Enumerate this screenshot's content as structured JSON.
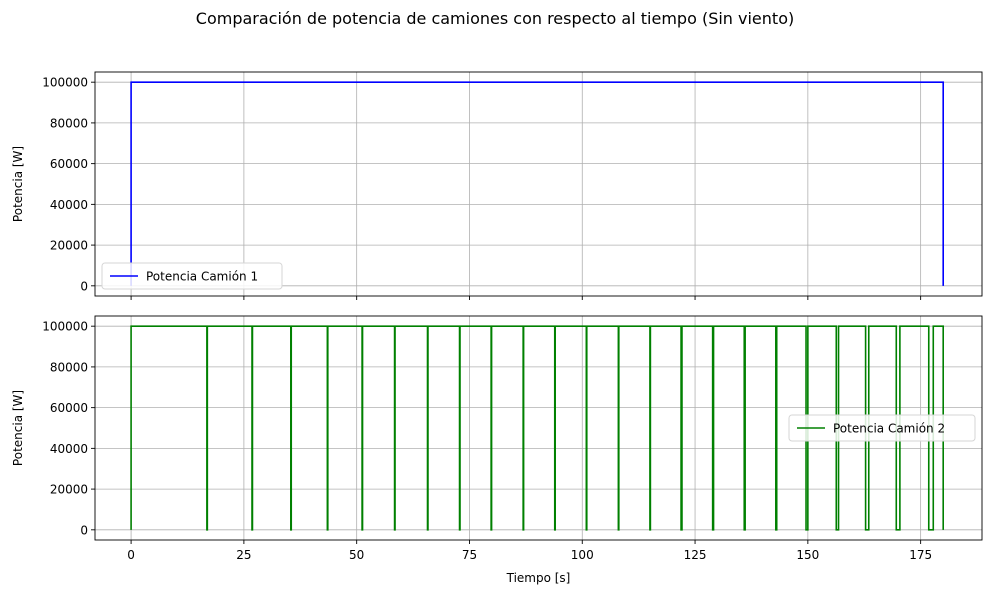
{
  "figure": {
    "suptitle": "Comparación de potencia de camiones con respecto al tiempo (Sin viento)"
  },
  "chart_data": [
    {
      "type": "line",
      "title": "",
      "xlabel": "",
      "ylabel": "Potencia [W]",
      "xlim": [
        -8.0,
        188.6
      ],
      "ylim": [
        -5000,
        105000
      ],
      "xticks": [
        0,
        25,
        50,
        75,
        100,
        125,
        150,
        175
      ],
      "xtick_labels_visible": false,
      "yticks": [
        0,
        20000,
        40000,
        60000,
        80000,
        100000
      ],
      "grid": true,
      "legend": {
        "position": "lower-left"
      },
      "series": [
        {
          "name": "Potencia Camión 1",
          "color": "#0000ff",
          "x": [
            0,
            0.001,
            180,
            180
          ],
          "y": [
            0,
            100000,
            100000,
            0
          ]
        }
      ]
    },
    {
      "type": "line",
      "title": "",
      "xlabel": "Tiempo [s]",
      "ylabel": "Potencia [W]",
      "xlim": [
        -8.0,
        188.6
      ],
      "ylim": [
        -5000,
        105000
      ],
      "xticks": [
        0,
        25,
        50,
        75,
        100,
        125,
        150,
        175
      ],
      "xtick_labels_visible": true,
      "yticks": [
        0,
        20000,
        40000,
        60000,
        80000,
        100000
      ],
      "grid": true,
      "legend": {
        "position": "center-right"
      },
      "series": [
        {
          "name": "Potencia Camión 2",
          "color": "#008000",
          "step_high": 100000,
          "step_low": 0,
          "start": 0,
          "end": 180,
          "zero_intervals": [
            [
              16.8,
              16.9
            ],
            [
              26.8,
              26.9
            ],
            [
              35.4,
              35.5
            ],
            [
              43.5,
              43.6
            ],
            [
              51.2,
              51.3
            ],
            [
              58.4,
              58.5
            ],
            [
              65.7,
              65.8
            ],
            [
              72.8,
              72.9
            ],
            [
              79.8,
              79.9
            ],
            [
              86.9,
              87.0
            ],
            [
              93.9,
              94.0
            ],
            [
              100.9,
              101.0
            ],
            [
              108.0,
              108.1
            ],
            [
              115.0,
              115.1
            ],
            [
              121.9,
              122.1
            ],
            [
              128.9,
              129.1
            ],
            [
              135.9,
              136.1
            ],
            [
              142.9,
              143.1
            ],
            [
              149.6,
              150.0
            ],
            [
              156.3,
              156.8
            ],
            [
              162.8,
              163.5
            ],
            [
              169.6,
              170.4
            ],
            [
              176.8,
              177.8
            ]
          ]
        }
      ]
    }
  ]
}
